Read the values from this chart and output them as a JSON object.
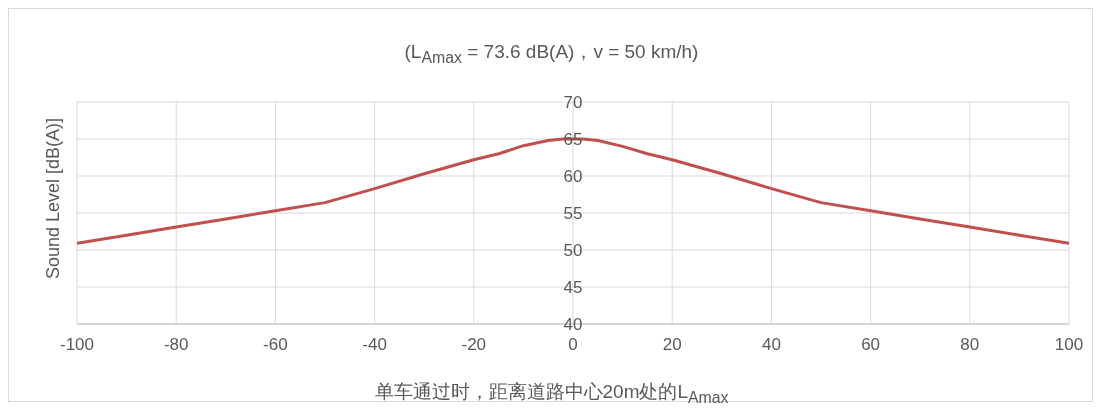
{
  "chart_data": {
    "type": "line",
    "title": "(L$_{Amax}$ = 73.6 dB(A)，v = 50 km/h)",
    "xlabel": "单车通过时，距离道路中心20m处的L$_{Amax}$",
    "ylabel": "Sound Level [dB(A)]",
    "x": [
      -100,
      -90,
      -80,
      -70,
      -60,
      -50,
      -40,
      -30,
      -20,
      -15,
      -10,
      -5,
      -2,
      2,
      5,
      10,
      15,
      20,
      30,
      40,
      50,
      60,
      70,
      80,
      90,
      100
    ],
    "series": [
      {
        "color": "#c0504d",
        "values": [
          50.9,
          52.0,
          53.1,
          54.2,
          55.3,
          56.4,
          58.3,
          60.3,
          62.2,
          63.0,
          64.1,
          64.8,
          65.0,
          65.0,
          64.8,
          64.0,
          63.0,
          62.2,
          60.3,
          58.3,
          56.4,
          55.3,
          54.2,
          53.1,
          52.0,
          50.9
        ]
      }
    ],
    "xlim": [
      -100,
      100
    ],
    "xticks": [
      -100,
      -80,
      -60,
      -40,
      -20,
      0,
      20,
      40,
      60,
      80,
      100
    ],
    "ylim": [
      40,
      70
    ],
    "yticks": [
      40,
      45,
      50,
      55,
      60,
      65,
      70
    ],
    "grid": true,
    "legend": false,
    "marker": "none",
    "line_style": "solid"
  }
}
